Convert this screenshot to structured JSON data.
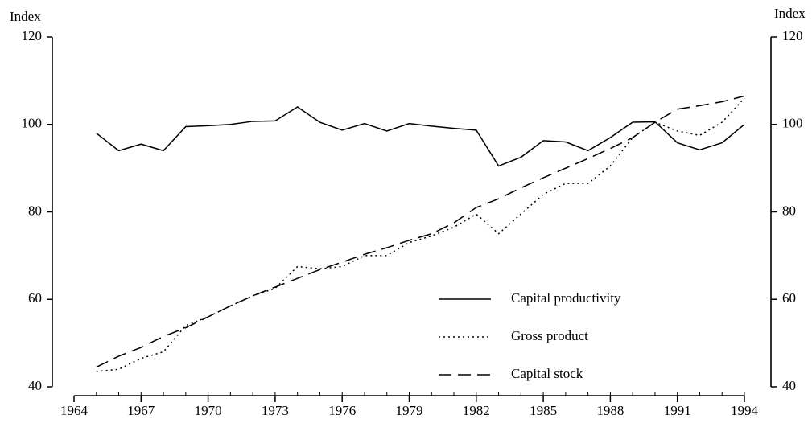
{
  "chart_data": {
    "type": "line",
    "y_label": "Index",
    "y2_label": "Index",
    "x": [
      1965,
      1966,
      1967,
      1968,
      1969,
      1970,
      1971,
      1972,
      1973,
      1974,
      1975,
      1976,
      1977,
      1978,
      1979,
      1980,
      1981,
      1982,
      1983,
      1984,
      1985,
      1986,
      1987,
      1988,
      1989,
      1990,
      1991,
      1992,
      1993,
      1994
    ],
    "series": [
      {
        "name": "Capital productivity",
        "color": "#000000",
        "style": "solid",
        "values": [
          98,
          94,
          95.5,
          94,
          99.5,
          99.7,
          100,
          100.7,
          100.8,
          104,
          100.5,
          98.7,
          100.2,
          98.5,
          100.2,
          99.6,
          99.1,
          98.7,
          90.5,
          92.5,
          96.3,
          96,
          94,
          97,
          100.5,
          100.6,
          95.8,
          94.2,
          95.8,
          100
        ]
      },
      {
        "name": "Gross product",
        "color": "#000000",
        "style": "dotted",
        "values": [
          43.5,
          44,
          46.5,
          48,
          54,
          56,
          58.5,
          60.8,
          62.5,
          67.5,
          67,
          67.5,
          70,
          70,
          73,
          74.5,
          76.5,
          79.5,
          75,
          79.5,
          84,
          86.5,
          86.5,
          90.5,
          97,
          100.5,
          98.5,
          97.5,
          100.5,
          106
        ]
      },
      {
        "name": "Capital stock",
        "color": "#000000",
        "style": "dashed",
        "values": [
          44.5,
          47,
          49,
          51.5,
          53.5,
          56,
          58.5,
          60.8,
          62.8,
          64.8,
          66.8,
          68.5,
          70.3,
          71.8,
          73.5,
          75,
          77.5,
          81,
          83,
          85.5,
          87.8,
          90,
          92.2,
          94.5,
          97,
          100.5,
          103.5,
          104.3,
          105.2,
          106.5
        ]
      }
    ],
    "xlim": [
      1964,
      1994
    ],
    "xticks": [
      1964,
      1967,
      1970,
      1973,
      1976,
      1979,
      1982,
      1985,
      1988,
      1991,
      1994
    ],
    "ylim": [
      40,
      120
    ],
    "yticks": [
      40,
      60,
      80,
      100,
      120
    ],
    "y2lim": [
      40,
      120
    ],
    "y2ticks": [
      40,
      60,
      80,
      100,
      120
    ],
    "legend": "lower-right"
  }
}
